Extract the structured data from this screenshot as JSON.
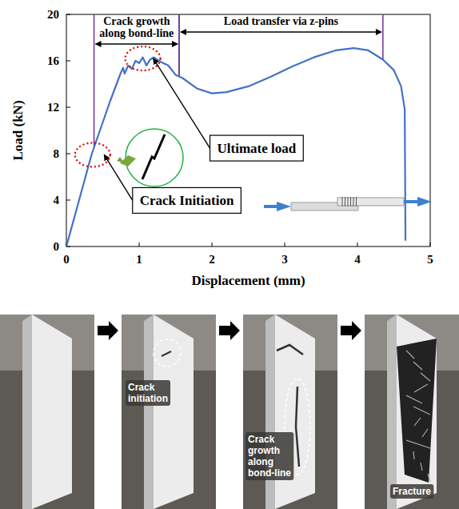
{
  "chart_data": {
    "type": "line",
    "x_label": "Displacement (mm)",
    "y_label": "Load (kN)",
    "xlim": [
      0,
      5
    ],
    "ylim": [
      0,
      20
    ],
    "xticks": [
      0,
      1,
      2,
      3,
      4,
      5
    ],
    "yticks": [
      0,
      4,
      8,
      12,
      16,
      20
    ],
    "grid": false,
    "series": [
      {
        "color": "#4472c4",
        "x": [
          0,
          0.35,
          0.6,
          0.75,
          0.78,
          0.8,
          0.85,
          0.9,
          0.95,
          1.0,
          1.05,
          1.1,
          1.15,
          1.2,
          1.3,
          1.4,
          1.5,
          1.6,
          1.8,
          2.0,
          2.2,
          2.5,
          2.8,
          3.1,
          3.4,
          3.7,
          3.95,
          4.15,
          4.35,
          4.5,
          4.6,
          4.65,
          4.66
        ],
        "values": [
          0,
          8,
          12.5,
          15.0,
          15.4,
          14.9,
          15.6,
          15.3,
          16.0,
          15.8,
          16.3,
          15.6,
          16.1,
          16.3,
          15.9,
          15.6,
          14.8,
          14.5,
          13.6,
          13.2,
          13.3,
          13.8,
          14.6,
          15.5,
          16.3,
          16.9,
          17.1,
          16.9,
          16.1,
          15.2,
          13.8,
          11.8,
          0.5
        ]
      }
    ],
    "regions": [
      {
        "label": "Crack growth along bond-line",
        "x": [
          0.38,
          1.55
        ]
      },
      {
        "label": "Load transfer via z-pins",
        "x": [
          1.55,
          4.35
        ]
      }
    ],
    "annotations": [
      {
        "text": "Ultimate load",
        "x": 1.05,
        "y": 16.2
      },
      {
        "text": "Crack Initiation",
        "x": 0.36,
        "y": 7.9
      }
    ]
  },
  "photos": [
    {},
    {
      "annotation": "Crack initiation"
    },
    {
      "annotation": "Crack growth along bond-line"
    },
    {
      "annotation": "Fracture"
    }
  ]
}
